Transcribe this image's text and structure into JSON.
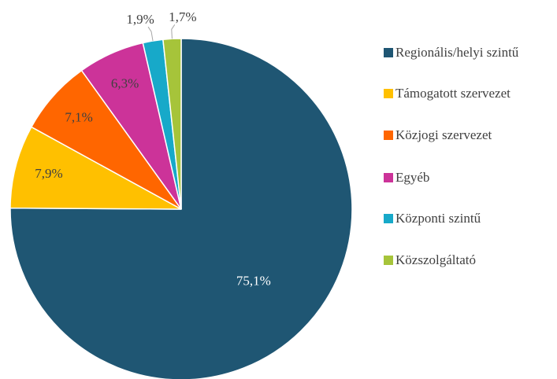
{
  "chart_data": {
    "type": "pie",
    "categories": [
      "Regionális/helyi szintű",
      "Támogatott szervezet",
      "Közjogi szervezet",
      "Egyéb",
      "Központi szintű",
      "Közszolgáltató"
    ],
    "values": [
      75.1,
      7.9,
      7.1,
      6.3,
      1.9,
      1.7
    ],
    "value_labels": [
      "75,1%",
      "7,9%",
      "7,1%",
      "6,3%",
      "1,9%",
      "1,7%"
    ],
    "colors": [
      "#1f5673",
      "#ffc000",
      "#ff6600",
      "#cc3399",
      "#17a9c9",
      "#a6c43a"
    ],
    "legend": "right"
  }
}
